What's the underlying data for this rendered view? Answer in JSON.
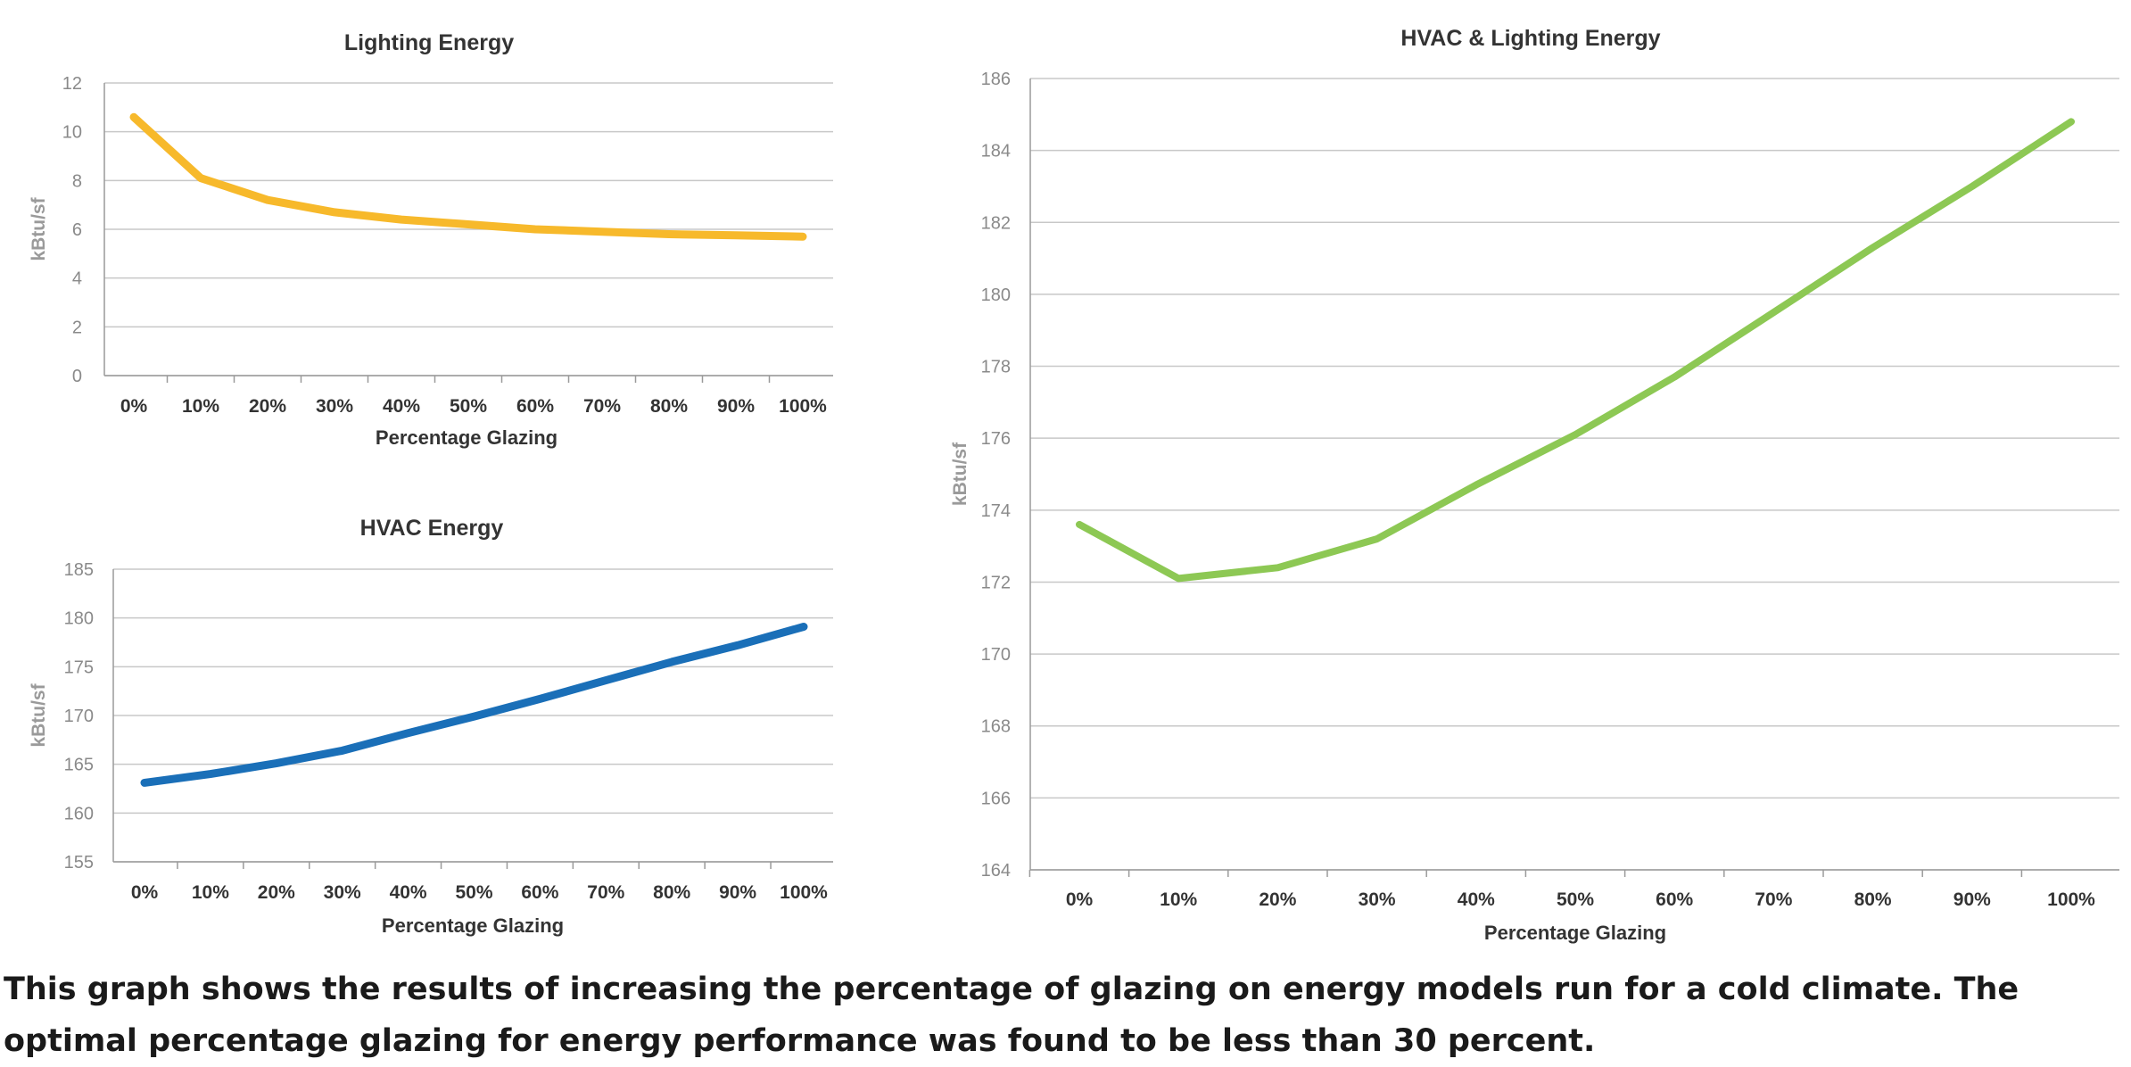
{
  "chart_data": [
    {
      "type": "line",
      "title": "Lighting Energy",
      "xlabel": "Percentage Glazing",
      "ylabel": "kBtu/sf",
      "categories": [
        "0%",
        "10%",
        "20%",
        "30%",
        "40%",
        "50%",
        "60%",
        "70%",
        "80%",
        "90%",
        "100%"
      ],
      "yticks": [
        "0",
        "2",
        "4",
        "6",
        "8",
        "10",
        "12"
      ],
      "ylim": [
        0,
        12
      ],
      "grid": true,
      "series": [
        {
          "color": "#F7B92B",
          "values": [
            10.6,
            8.1,
            7.2,
            6.7,
            6.4,
            6.2,
            6.0,
            5.9,
            5.8,
            5.75,
            5.7
          ]
        }
      ]
    },
    {
      "type": "line",
      "title": "HVAC Energy",
      "xlabel": "Percentage Glazing",
      "ylabel": "kBtu/sf",
      "categories": [
        "0%",
        "10%",
        "20%",
        "30%",
        "40%",
        "50%",
        "60%",
        "70%",
        "80%",
        "90%",
        "100%"
      ],
      "yticks": [
        "155",
        "160",
        "165",
        "170",
        "175",
        "180",
        "185"
      ],
      "ylim": [
        155,
        185
      ],
      "grid": true,
      "series": [
        {
          "color": "#1A6FB8",
          "values": [
            163.1,
            164.0,
            165.1,
            166.4,
            168.2,
            169.9,
            171.7,
            173.6,
            175.5,
            177.2,
            179.1
          ]
        }
      ]
    },
    {
      "type": "line",
      "title": "HVAC & Lighting Energy",
      "xlabel": "Percentage Glazing",
      "ylabel": "kBtu/sf",
      "categories": [
        "0%",
        "10%",
        "20%",
        "30%",
        "40%",
        "50%",
        "60%",
        "70%",
        "80%",
        "90%",
        "100%"
      ],
      "yticks": [
        "164",
        "166",
        "168",
        "170",
        "172",
        "174",
        "176",
        "178",
        "180",
        "182",
        "184",
        "186"
      ],
      "ylim": [
        164,
        186
      ],
      "grid": true,
      "series": [
        {
          "color": "#8DC854",
          "values": [
            173.6,
            172.1,
            172.4,
            173.2,
            174.7,
            176.1,
            177.7,
            179.5,
            181.3,
            183.0,
            184.8
          ]
        }
      ]
    }
  ],
  "caption": "This graph shows the results of increasing the percentage of glazing on energy models run for a cold climate. The optimal percentage glazing for energy performance was found to be less than 30 percent."
}
